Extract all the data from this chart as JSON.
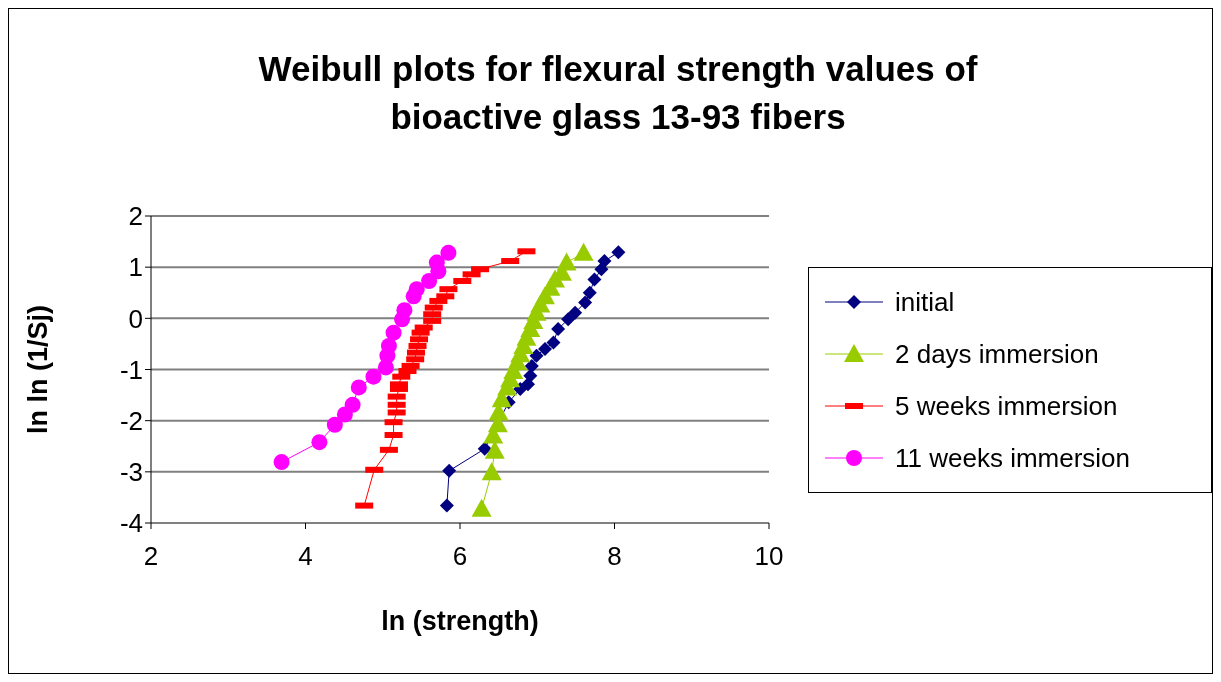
{
  "chart_data": {
    "type": "line",
    "title": "Weibull plots for flexural strength values of bioactive glass 13-93 fibers",
    "xlabel": "ln (strength)",
    "ylabel": "ln ln (1/Sj)",
    "xlim": [
      2,
      10
    ],
    "xticks": [
      2,
      4,
      6,
      8,
      10
    ],
    "ylim": [
      -4,
      2
    ],
    "yticks": [
      -4,
      -3,
      -2,
      -1,
      0,
      1,
      2
    ],
    "grid": "y",
    "legend": "right",
    "series": [
      {
        "name": "initial",
        "color": "#000080",
        "marker": "diamond",
        "x": [
          5.83,
          5.86,
          6.32,
          6.37,
          6.43,
          6.63,
          6.78,
          6.88,
          6.91,
          6.93,
          6.99,
          7.1,
          7.21,
          7.27,
          7.4,
          7.49,
          7.62,
          7.68,
          7.74,
          7.83,
          7.87,
          8.05
        ],
        "values": [
          -3.66,
          -2.98,
          -2.55,
          null,
          null,
          -1.64,
          -1.38,
          -1.29,
          -1.12,
          -0.93,
          -0.73,
          -0.6,
          -0.47,
          -0.21,
          -0.02,
          0.11,
          0.31,
          0.5,
          0.76,
          0.96,
          1.12,
          1.29
        ]
      },
      {
        "name": "2 days immersion",
        "color": "#99cc00",
        "marker": "triangle",
        "x": [
          6.28,
          6.41,
          6.45,
          6.43,
          6.49,
          6.5,
          6.54,
          6.61,
          6.65,
          6.69,
          6.74,
          6.78,
          6.82,
          6.86,
          6.91,
          6.95,
          6.99,
          7.04,
          7.1,
          7.17,
          7.23,
          7.32,
          7.38,
          7.6
        ],
        "values": [
          -3.72,
          -3.01,
          -2.59,
          -2.29,
          -2.07,
          -1.84,
          -1.58,
          -1.35,
          -1.19,
          -1.03,
          -0.86,
          -0.7,
          -0.54,
          -0.38,
          -0.21,
          -0.05,
          0.11,
          0.27,
          0.43,
          0.6,
          0.76,
          0.89,
          1.09,
          1.28
        ]
      },
      {
        "name": "5 weeks immersion",
        "color": "#ff0000",
        "marker": "square",
        "x": [
          4.76,
          4.89,
          5.08,
          5.14,
          5.14,
          5.18,
          5.18,
          5.18,
          5.21,
          5.21,
          5.24,
          5.32,
          5.36,
          5.42,
          5.43,
          5.45,
          5.47,
          5.49,
          5.53,
          5.64,
          5.64,
          5.66,
          5.72,
          5.81,
          5.85,
          6.03,
          6.15,
          6.26,
          6.65,
          6.86
        ],
        "values": [
          -3.66,
          -2.96,
          -2.57,
          -2.28,
          -2.03,
          -1.84,
          -1.69,
          -1.53,
          -1.38,
          -1.29,
          -1.14,
          -1.03,
          -0.93,
          -0.8,
          -0.67,
          -0.54,
          -0.41,
          -0.28,
          -0.18,
          -0.05,
          0.08,
          0.21,
          0.34,
          0.43,
          0.57,
          0.73,
          0.86,
          0.96,
          1.12,
          1.31
        ]
      },
      {
        "name": "11 weeks immersion",
        "color": "#ff00ff",
        "marker": "circle",
        "x": [
          3.69,
          4.18,
          4.38,
          4.51,
          4.61,
          4.69,
          4.88,
          5.04,
          5.06,
          5.08,
          5.14,
          5.25,
          5.28,
          5.4,
          5.44,
          5.6,
          5.72,
          5.7,
          5.85
        ],
        "values": [
          -2.81,
          -2.42,
          -2.08,
          -1.88,
          -1.69,
          -1.35,
          -1.14,
          -0.96,
          -0.73,
          -0.54,
          -0.28,
          -0.02,
          0.16,
          0.43,
          0.57,
          0.73,
          0.92,
          1.09,
          1.28
        ]
      }
    ]
  }
}
